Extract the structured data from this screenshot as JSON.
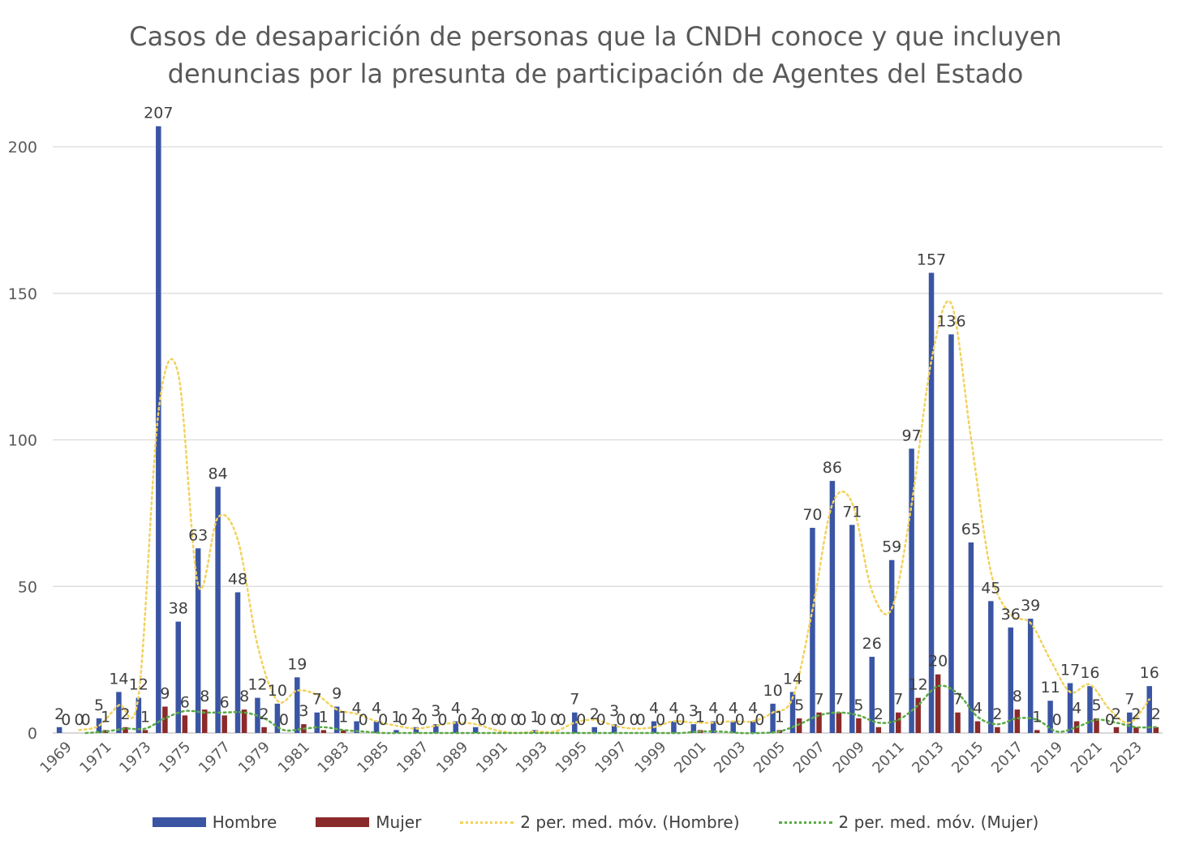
{
  "chart_data": {
    "type": "bar",
    "title_lines": [
      "Casos de desaparición de personas que la CNDH conoce y que incluyen",
      "denuncias por la presunta de participación de Agentes del Estado"
    ],
    "categories": [
      "1969",
      "1970",
      "1971",
      "1972",
      "1973",
      "1974",
      "1975",
      "1976",
      "1977",
      "1978",
      "1979",
      "1980",
      "1981",
      "1982",
      "1983",
      "1984",
      "1985",
      "1986",
      "1987",
      "1988",
      "1989",
      "1990",
      "1991",
      "1992",
      "1993",
      "1994",
      "1995",
      "1996",
      "1997",
      "1998",
      "1999",
      "2000",
      "2001",
      "2002",
      "2003",
      "2004",
      "2005",
      "2006",
      "2007",
      "2008",
      "2009",
      "2010",
      "2011",
      "2012",
      "2013",
      "2014",
      "2015",
      "2016",
      "2017",
      "2018",
      "2019",
      "2020",
      "2021",
      "2022",
      "2023",
      "2024"
    ],
    "series": [
      {
        "name": "Hombre",
        "color": "#3A55A4",
        "values": [
          2,
          0,
          5,
          14,
          12,
          207,
          38,
          63,
          84,
          48,
          12,
          10,
          19,
          7,
          9,
          4,
          4,
          1,
          2,
          3,
          4,
          2,
          0,
          0,
          1,
          0,
          7,
          2,
          3,
          0,
          4,
          4,
          3,
          4,
          4,
          4,
          10,
          14,
          70,
          86,
          71,
          26,
          59,
          97,
          157,
          136,
          65,
          45,
          36,
          39,
          11,
          17,
          16,
          0,
          7,
          16
        ]
      },
      {
        "name": "Mujer",
        "color": "#8B2A2A",
        "values": [
          0,
          0,
          1,
          2,
          1,
          9,
          6,
          8,
          6,
          8,
          2,
          0,
          3,
          1,
          1,
          0,
          0,
          0,
          0,
          0,
          0,
          0,
          0,
          0,
          0,
          0,
          0,
          0,
          0,
          0,
          0,
          0,
          1,
          0,
          0,
          0,
          1,
          5,
          7,
          7,
          5,
          2,
          7,
          12,
          20,
          7,
          4,
          2,
          8,
          1,
          0,
          4,
          5,
          2,
          2,
          2
        ]
      }
    ],
    "moving_averages": [
      {
        "name": "2 per. med. móv. (Hombre)",
        "color": "#F2D25C",
        "of_series": "Hombre",
        "period": 2
      },
      {
        "name": "2 per. med. móv. (Mujer)",
        "color": "#5BAA46",
        "of_series": "Mujer",
        "period": 2
      }
    ],
    "x_tick_labels": [
      "1969",
      "1971",
      "1973",
      "1975",
      "1977",
      "1979",
      "1981",
      "1983",
      "1985",
      "1987",
      "1989",
      "1991",
      "1993",
      "1995",
      "1997",
      "1999",
      "2001",
      "2003",
      "2005",
      "2007",
      "2009",
      "2011",
      "2013",
      "2015",
      "2017",
      "2019",
      "2021",
      "2023"
    ],
    "y_ticks": [
      0,
      50,
      100,
      150,
      200
    ],
    "ylim": [
      0,
      210
    ],
    "xlabel": "",
    "ylabel": "",
    "grid": true,
    "legend_position": "bottom"
  }
}
